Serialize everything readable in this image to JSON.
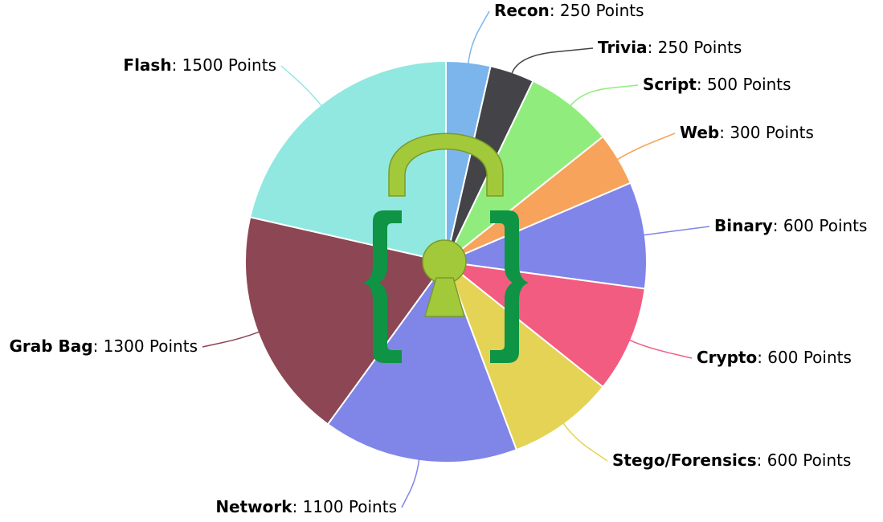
{
  "chart_data": {
    "type": "pie",
    "title": "",
    "unit_suffix": " Points",
    "separator": ": ",
    "slices": [
      {
        "label": "Recon",
        "value": 250,
        "color": "#7cb5ec"
      },
      {
        "label": "Trivia",
        "value": 250,
        "color": "#434348"
      },
      {
        "label": "Script",
        "value": 500,
        "color": "#90ed7d"
      },
      {
        "label": "Web",
        "value": 300,
        "color": "#f7a35c"
      },
      {
        "label": "Binary",
        "value": 600,
        "color": "#8085e9"
      },
      {
        "label": "Crypto",
        "value": 600,
        "color": "#f15c80"
      },
      {
        "label": "Stego/Forensics",
        "value": 600,
        "color": "#e4d354"
      },
      {
        "label": "Network",
        "value": 1100,
        "color": "#8085e8"
      },
      {
        "label": "Grab Bag",
        "value": 1300,
        "color": "#8d4653"
      },
      {
        "label": "Flash",
        "value": 1500,
        "color": "#91e8e1"
      }
    ]
  },
  "logo": {
    "name": "padlock-braces-logo",
    "shackle_color": "#a2c93a",
    "brace_color": "#0e9444",
    "keyhole_color": "#a2c93a"
  }
}
